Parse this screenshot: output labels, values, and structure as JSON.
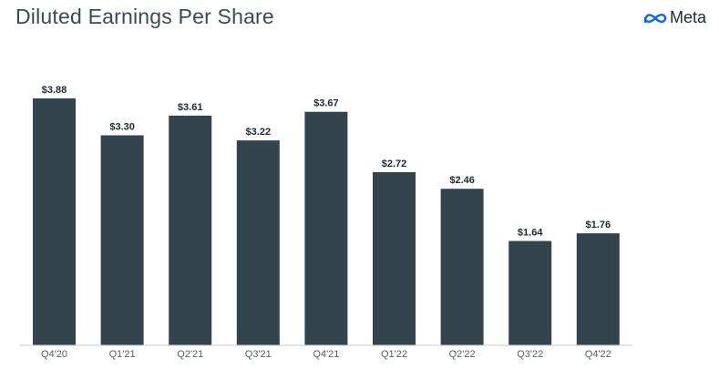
{
  "header": {
    "title": "Diluted Earnings Per Share",
    "brand": "Meta",
    "brand_icon": "meta-infinity-logo-icon",
    "brand_color": "#0866ff"
  },
  "colors": {
    "bar": "#33444f",
    "axis": "#c9cfd3",
    "label": "#1c2b33",
    "tick": "#555f66"
  },
  "chart_data": {
    "type": "bar",
    "title": "Diluted Earnings Per Share",
    "xlabel": "",
    "ylabel": "",
    "categories": [
      "Q4'20",
      "Q1'21",
      "Q2'21",
      "Q3'21",
      "Q4'21",
      "Q1'22",
      "Q2'22",
      "Q3'22",
      "Q4'22"
    ],
    "values": [
      3.88,
      3.3,
      3.61,
      3.22,
      3.67,
      2.72,
      2.46,
      1.64,
      1.76
    ],
    "data_labels": [
      "$3.88",
      "$3.30",
      "$3.61",
      "$3.22",
      "$3.67",
      "$2.72",
      "$2.46",
      "$1.64",
      "$1.76"
    ],
    "ylim": [
      0,
      3.88
    ],
    "grid": false,
    "legend": "none"
  }
}
